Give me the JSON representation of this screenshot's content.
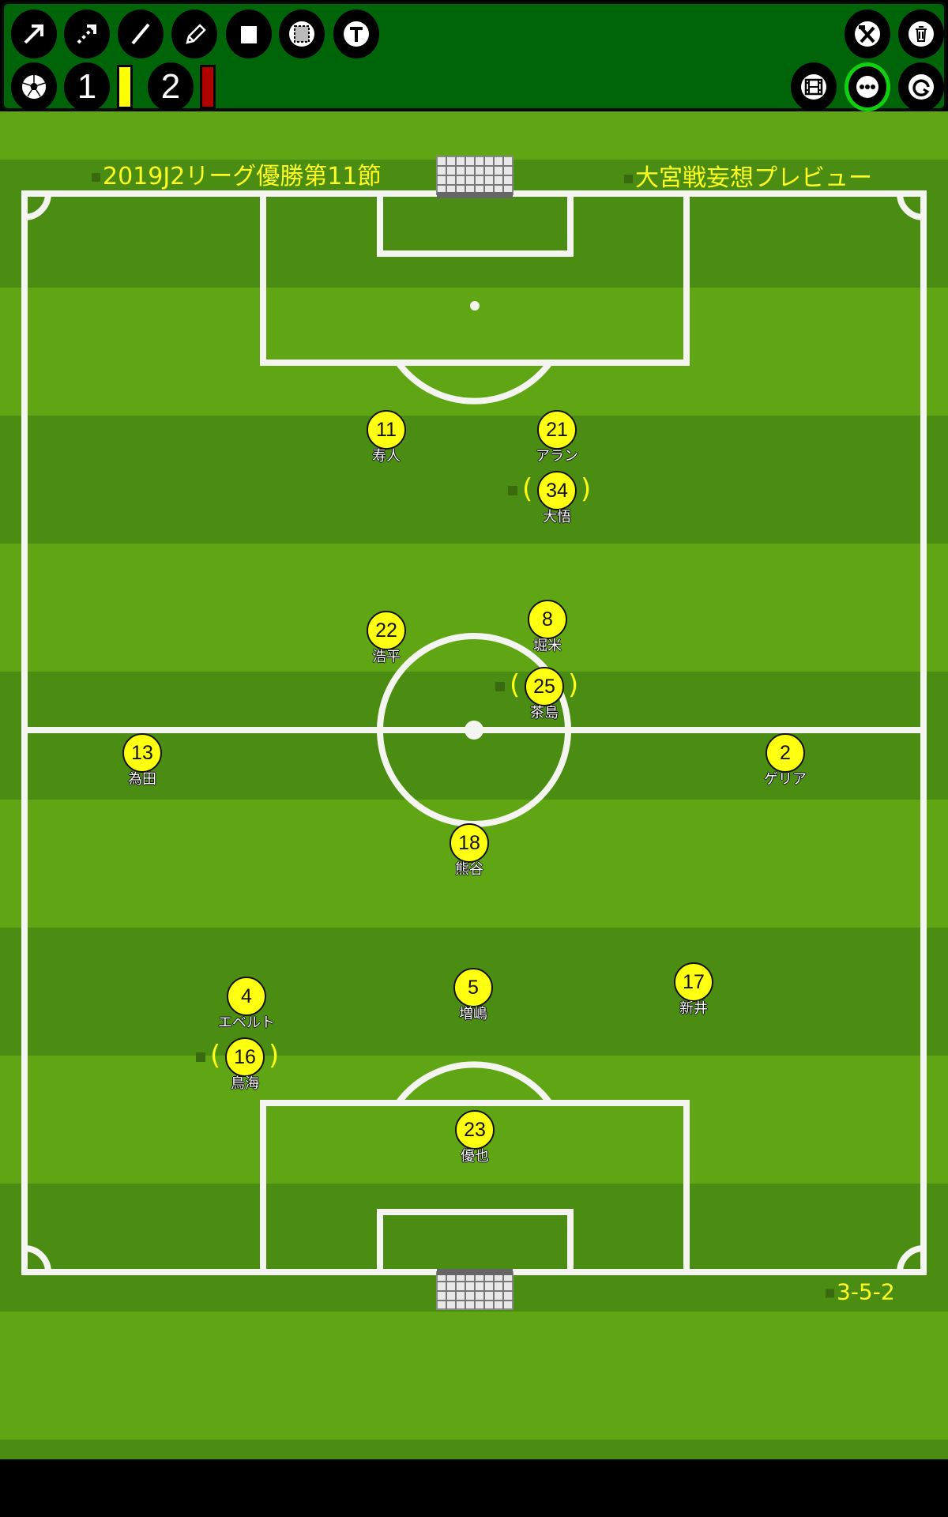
{
  "toolbar": {
    "row1": [
      "arrow-tool",
      "dotted-arrow-tool",
      "line-tool",
      "pencil-tool",
      "rectangle-tool",
      "dashed-area-tool",
      "text-tool"
    ],
    "row1_right": [
      "tools-settings",
      "trash"
    ],
    "row2": {
      "ball": "soccer-ball",
      "team1_label": "1",
      "team2_label": "2",
      "yellow_card_color": "#ffff00",
      "red_card_color": "#b00000"
    },
    "row2_right": [
      "film",
      "more",
      "rotate"
    ],
    "active": "more",
    "accent": "#10d010",
    "background": "#006409"
  },
  "board": {
    "title_left": "2019J2リーグ優勝第11節",
    "title_right": "大宮戦妄想プレビュー",
    "formation": "3-5-2",
    "pitch_color": "#5fa514",
    "player_color": "#ffff10"
  },
  "players": [
    {
      "number": "11",
      "name": "寿人",
      "sub": false
    },
    {
      "number": "21",
      "name": "アラン",
      "sub": false
    },
    {
      "number": "34",
      "name": "大悟",
      "sub": true
    },
    {
      "number": "22",
      "name": "浩平",
      "sub": false
    },
    {
      "number": "8",
      "name": "堀米",
      "sub": false
    },
    {
      "number": "25",
      "name": "茶島",
      "sub": true
    },
    {
      "number": "13",
      "name": "為田",
      "sub": false
    },
    {
      "number": "2",
      "name": "ゲリア",
      "sub": false
    },
    {
      "number": "18",
      "name": "熊谷",
      "sub": false
    },
    {
      "number": "4",
      "name": "エベルト",
      "sub": false
    },
    {
      "number": "5",
      "name": "増嶋",
      "sub": false
    },
    {
      "number": "17",
      "name": "新井",
      "sub": false
    },
    {
      "number": "16",
      "name": "鳥海",
      "sub": true
    },
    {
      "number": "23",
      "name": "優也",
      "sub": false
    }
  ]
}
